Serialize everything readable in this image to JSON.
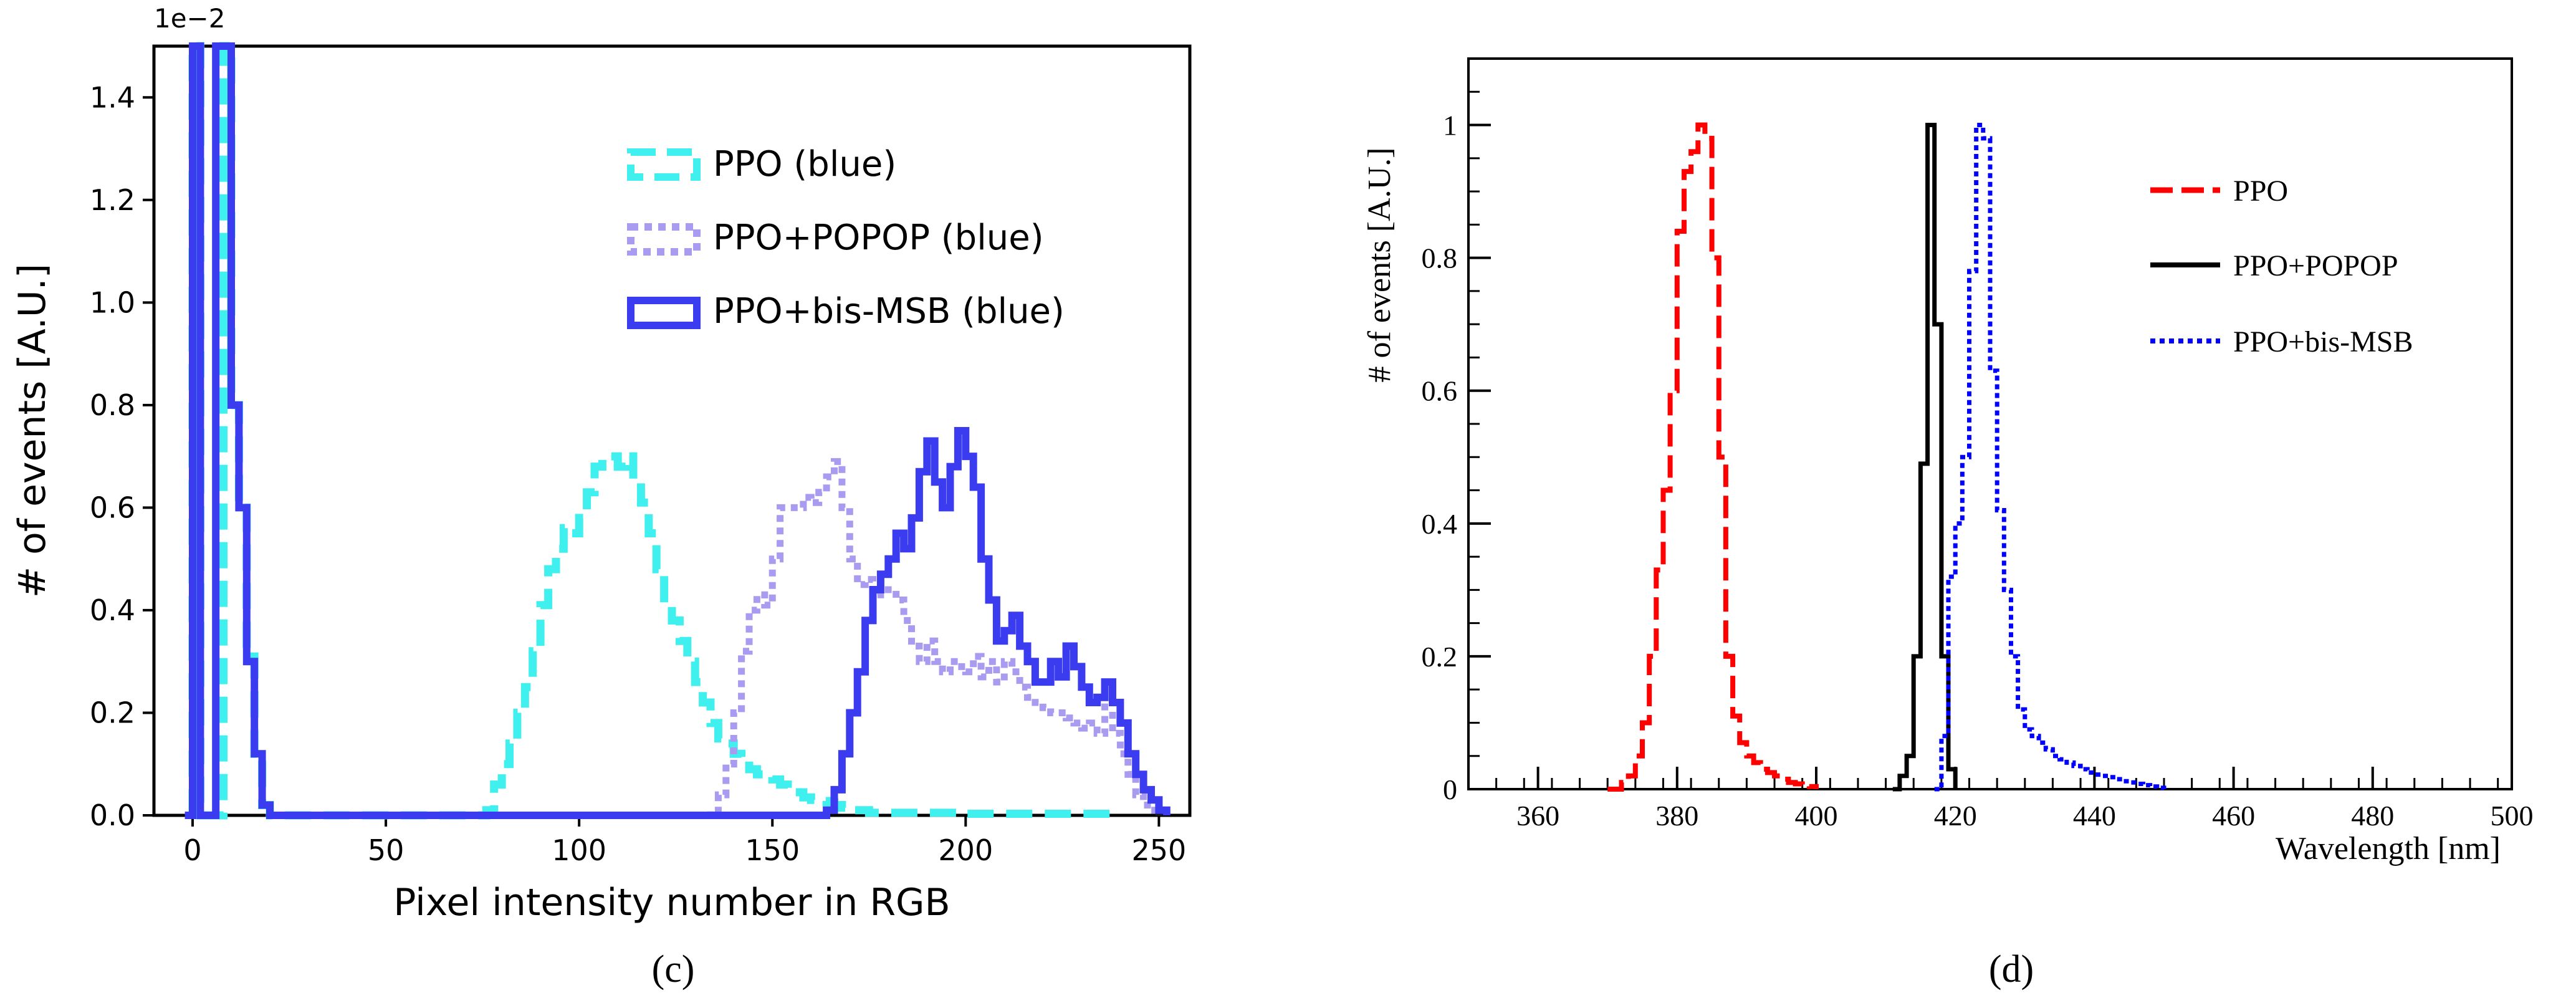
{
  "panels": {
    "left_caption": "(c)",
    "right_caption": "(d)"
  },
  "colors": {
    "ppo_cyan": "#3ff0ef",
    "popop_lavender": "#a89bf0",
    "bis_blue": "#3b3cf0",
    "ppo_red": "#ff0000",
    "popop_black": "#000000",
    "bis_blue_dotted": "#0000ff"
  },
  "chart_data": [
    {
      "type": "line",
      "panel": "c",
      "title": "",
      "xlabel": "Pixel intensity number in RGB",
      "ylabel": "# of events [A.U.]",
      "y_multiplier_label": "1e−2",
      "xlim": [
        -10,
        258
      ],
      "ylim": [
        0,
        1.5
      ],
      "xticks": [
        0,
        50,
        100,
        150,
        200,
        250
      ],
      "xtick_labels": [
        "0",
        "50",
        "100",
        "150",
        "200",
        "250"
      ],
      "yticks": [
        0,
        0.2,
        0.4,
        0.6,
        0.8,
        1.0,
        1.2,
        1.4
      ],
      "ytick_labels": [
        "0.0",
        "0.2",
        "0.4",
        "0.6",
        "0.8",
        "1.0",
        "1.2",
        "1.4"
      ],
      "legend_location": "upper-center",
      "series": [
        {
          "name": "PPO (blue)",
          "style": "dashed",
          "color": "#3ff0ef",
          "x": [
            0,
            2,
            4,
            6,
            8,
            10,
            12,
            14,
            16,
            18,
            20,
            74,
            76,
            78,
            80,
            82,
            84,
            86,
            88,
            90,
            92,
            94,
            96,
            98,
            100,
            102,
            104,
            106,
            108,
            110,
            112,
            114,
            116,
            118,
            120,
            122,
            124,
            126,
            128,
            130,
            132,
            134,
            136,
            138,
            140,
            142,
            144,
            146,
            148,
            150,
            152,
            154,
            156,
            158,
            160,
            162,
            164,
            166,
            168,
            170,
            175,
            200,
            240
          ],
          "y": [
            1.5,
            0,
            0,
            0,
            1.5,
            0.8,
            0.6,
            0.32,
            0.12,
            0.02,
            0,
            0,
            0.01,
            0.06,
            0.1,
            0.14,
            0.2,
            0.25,
            0.32,
            0.41,
            0.48,
            0.52,
            0.56,
            0.55,
            0.58,
            0.63,
            0.68,
            0.7,
            0.7,
            0.68,
            0.7,
            0.65,
            0.61,
            0.55,
            0.48,
            0.41,
            0.38,
            0.34,
            0.3,
            0.26,
            0.22,
            0.18,
            0.15,
            0.14,
            0.12,
            0.11,
            0.09,
            0.08,
            0.075,
            0.07,
            0.06,
            0.05,
            0.045,
            0.035,
            0.03,
            0.028,
            0.025,
            0.02,
            0.015,
            0.01,
            0.005,
            0.003,
            0.003
          ]
        },
        {
          "name": "PPO+POPOP (blue)",
          "style": "dotted",
          "color": "#a89bf0",
          "x": [
            130,
            134,
            136,
            138,
            140,
            142,
            144,
            146,
            148,
            150,
            152,
            154,
            156,
            158,
            160,
            162,
            164,
            166,
            168,
            170,
            172,
            174,
            176,
            178,
            180,
            182,
            184,
            186,
            188,
            190,
            192,
            194,
            196,
            198,
            200,
            202,
            204,
            206,
            208,
            210,
            212,
            214,
            216,
            218,
            220,
            222,
            224,
            226,
            228,
            230,
            232,
            234,
            236,
            238,
            240,
            242,
            244,
            246,
            248,
            250
          ],
          "y": [
            0,
            0.01,
            0.04,
            0.1,
            0.2,
            0.32,
            0.4,
            0.43,
            0.41,
            0.5,
            0.6,
            0.6,
            0.6,
            0.62,
            0.61,
            0.63,
            0.66,
            0.69,
            0.6,
            0.5,
            0.45,
            0.46,
            0.43,
            0.44,
            0.44,
            0.42,
            0.38,
            0.33,
            0.3,
            0.34,
            0.3,
            0.28,
            0.3,
            0.29,
            0.28,
            0.31,
            0.27,
            0.3,
            0.26,
            0.3,
            0.28,
            0.25,
            0.23,
            0.22,
            0.21,
            0.2,
            0.2,
            0.19,
            0.18,
            0.17,
            0.18,
            0.16,
            0.22,
            0.16,
            0.12,
            0.08,
            0.04,
            0.02,
            0.01,
            0
          ]
        },
        {
          "name": "PPO+bis-MSB (blue)",
          "style": "solid",
          "color": "#3b3cf0",
          "x": [
            -2,
            0,
            2,
            4,
            6,
            8,
            10,
            12,
            14,
            16,
            18,
            20,
            162,
            164,
            166,
            168,
            170,
            172,
            174,
            176,
            178,
            180,
            182,
            184,
            186,
            188,
            190,
            192,
            194,
            196,
            198,
            200,
            202,
            204,
            206,
            208,
            210,
            212,
            214,
            216,
            218,
            220,
            222,
            224,
            226,
            228,
            230,
            232,
            234,
            236,
            238,
            240,
            242,
            244,
            246,
            248,
            250,
            252
          ],
          "y": [
            0,
            1.5,
            0,
            0,
            1.5,
            1.5,
            0.8,
            0.6,
            0.3,
            0.12,
            0.02,
            0,
            0,
            0.01,
            0.05,
            0.12,
            0.2,
            0.28,
            0.38,
            0.44,
            0.47,
            0.5,
            0.55,
            0.52,
            0.58,
            0.67,
            0.73,
            0.65,
            0.6,
            0.68,
            0.75,
            0.7,
            0.64,
            0.5,
            0.42,
            0.34,
            0.36,
            0.39,
            0.33,
            0.3,
            0.26,
            0.26,
            0.3,
            0.27,
            0.33,
            0.29,
            0.25,
            0.22,
            0.23,
            0.26,
            0.22,
            0.18,
            0.12,
            0.08,
            0.05,
            0.03,
            0.01,
            0
          ]
        }
      ]
    },
    {
      "type": "line",
      "panel": "d",
      "title": "",
      "xlabel": "Wavelength [nm]",
      "ylabel": "# of events [A.U.]",
      "xlim": [
        350,
        500
      ],
      "ylim": [
        0,
        1.1
      ],
      "xticks": [
        360,
        380,
        400,
        420,
        440,
        460,
        480,
        500
      ],
      "xtick_labels": [
        "360",
        "380",
        "400",
        "420",
        "440",
        "460",
        "480",
        "500"
      ],
      "yticks": [
        0,
        0.2,
        0.4,
        0.6,
        0.8,
        1
      ],
      "ytick_labels": [
        "0",
        "0.2",
        "0.4",
        "0.6",
        "0.8",
        "1"
      ],
      "legend_location": "upper-right",
      "series": [
        {
          "name": "PPO",
          "style": "dashed",
          "color": "#ff0000",
          "x": [
            370,
            372,
            373,
            374,
            375,
            376,
            377,
            378,
            379,
            380,
            381,
            382,
            383,
            384,
            385,
            386,
            387,
            388,
            389,
            390,
            391,
            392,
            393,
            394,
            395,
            396,
            397,
            398,
            399,
            400
          ],
          "y": [
            0,
            0.01,
            0.02,
            0.05,
            0.1,
            0.2,
            0.33,
            0.45,
            0.6,
            0.84,
            0.93,
            0.96,
            1.0,
            0.98,
            0.8,
            0.5,
            0.2,
            0.11,
            0.07,
            0.05,
            0.04,
            0.03,
            0.025,
            0.02,
            0.015,
            0.01,
            0.008,
            0.006,
            0.004,
            0
          ]
        },
        {
          "name": "PPO+POPOP",
          "style": "solid",
          "color": "#000000",
          "x": [
            411,
            412,
            413,
            414,
            415,
            416,
            417,
            418,
            419,
            420
          ],
          "y": [
            0,
            0.02,
            0.05,
            0.2,
            0.49,
            1.0,
            0.7,
            0.2,
            0.03,
            0
          ]
        },
        {
          "name": "PPO+bis-MSB",
          "style": "dotted",
          "color": "#0000ff",
          "x": [
            417,
            418,
            419,
            420,
            421,
            422,
            423,
            424,
            425,
            426,
            427,
            428,
            429,
            430,
            431,
            432,
            433,
            434,
            435,
            436,
            437,
            438,
            439,
            440,
            441,
            442,
            443,
            444,
            445,
            446,
            447,
            448,
            449,
            450
          ],
          "y": [
            0,
            0.08,
            0.32,
            0.4,
            0.5,
            0.78,
            1.0,
            0.98,
            0.63,
            0.42,
            0.3,
            0.2,
            0.12,
            0.09,
            0.08,
            0.07,
            0.06,
            0.05,
            0.045,
            0.04,
            0.035,
            0.03,
            0.025,
            0.022,
            0.02,
            0.018,
            0.015,
            0.012,
            0.01,
            0.008,
            0.006,
            0.004,
            0.002,
            0
          ]
        }
      ]
    }
  ]
}
